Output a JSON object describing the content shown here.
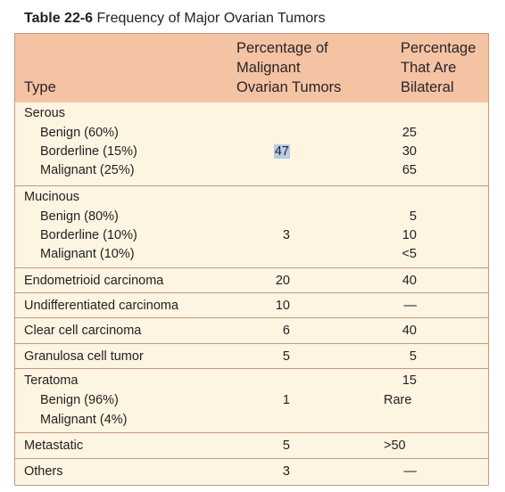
{
  "caption": {
    "number": "Table 22-6",
    "title": "Frequency of Major Ovarian Tumors"
  },
  "headers": {
    "type": "Type",
    "malignant": [
      "Percentage of",
      "Malignant",
      "Ovarian Tumors"
    ],
    "bilateral": [
      "Percentage",
      "That Are",
      "Bilateral"
    ]
  },
  "rows": {
    "serous": {
      "name": "Serous",
      "sub": [
        "Benign (60%)",
        "Borderline (15%)",
        "Malignant (25%)"
      ],
      "pct": "47",
      "bilateral": [
        "25",
        "30",
        "65"
      ]
    },
    "mucinous": {
      "name": "Mucinous",
      "sub": [
        "Benign (80%)",
        "Borderline (10%)",
        "Malignant (10%)"
      ],
      "pct": "3",
      "bilateral": [
        "5",
        "10",
        "<5"
      ]
    },
    "endometrioid": {
      "name": "Endometrioid carcinoma",
      "pct": "20",
      "bilateral": "40"
    },
    "undifferentiated": {
      "name": "Undifferentiated carcinoma",
      "pct": "10",
      "bilateral": "—"
    },
    "clearcell": {
      "name": "Clear cell carcinoma",
      "pct": "6",
      "bilateral": "40"
    },
    "granulosa": {
      "name": "Granulosa cell tumor",
      "pct": "5",
      "bilateral": "5"
    },
    "teratoma": {
      "name": "Teratoma",
      "sub": [
        "Benign (96%)",
        "Malignant (4%)"
      ],
      "pct": "1",
      "bilateral": [
        "15",
        "Rare"
      ]
    },
    "metastatic": {
      "name": "Metastatic",
      "pct": "5",
      "bilateral": ">50"
    },
    "others": {
      "name": "Others",
      "pct": "3",
      "bilateral": "—"
    }
  },
  "colors": {
    "header_bg": "#f4c3a4",
    "body_bg": "#fdf4e1",
    "rule": "#c49a82",
    "selection": "#b8cde8"
  }
}
